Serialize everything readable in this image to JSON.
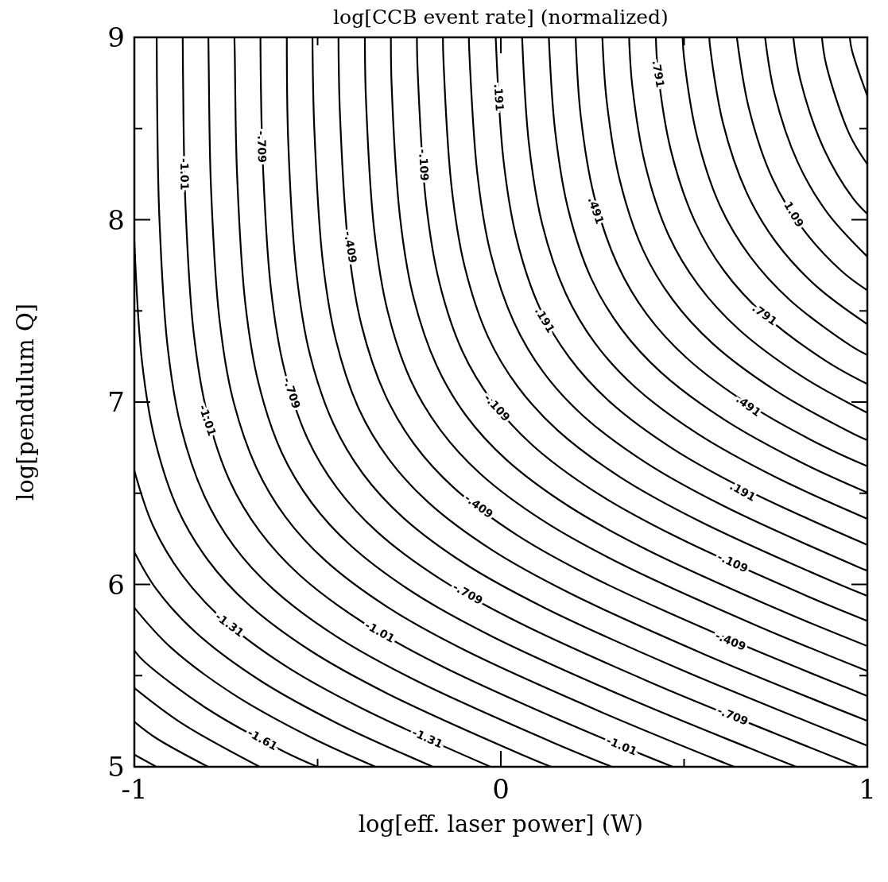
{
  "chart_data": {
    "type": "line",
    "title": "log[CCB event rate] (normalized)",
    "xlabel": "log[eff. laser power] (W)",
    "ylabel": "log[pendulum Q]",
    "xlim": [
      -1,
      1
    ],
    "ylim": [
      5,
      9
    ],
    "xticks": [
      -1,
      {
        "value": -0.5,
        "label": null
      },
      0,
      {
        "value": 0.5,
        "label": null
      },
      1
    ],
    "yticks": [
      5,
      {
        "value": 5.5,
        "label": null
      },
      6,
      {
        "value": 6.5,
        "label": null
      },
      7,
      {
        "value": 7.5,
        "label": null
      },
      8,
      {
        "value": 8.5,
        "label": null
      },
      9
    ],
    "series": [
      {
        "color": "#000000",
        "x": [
          -0.94,
          -1
        ],
        "values": [
          5,
          5.067
        ]
      },
      {
        "color": "#000000",
        "x": [
          -0.799,
          -0.942,
          -1
        ],
        "values": [
          5,
          5.159,
          5.247
        ]
      },
      {
        "color": "#000000",
        "x": [
          -0.658,
          -0.871,
          -1
        ],
        "values": [
          5,
          5.239,
          5.432
        ]
      },
      {
        "color": "#000000",
        "x": [
          -0.5,
          -0.589,
          -0.801,
          -0.972,
          -1
        ],
        "values": [
          5,
          5.081,
          5.318,
          5.575,
          5.637
        ]
      },
      {
        "color": "#000000",
        "x": [
          -0.342,
          -0.518,
          -0.73,
          -0.901,
          -1
        ],
        "values": [
          5,
          5.161,
          5.398,
          5.655,
          5.872
        ]
      },
      {
        "color": "#000000",
        "x": [
          -0.185,
          -0.448,
          -0.66,
          -0.831,
          -0.94,
          -1
        ],
        "values": [
          5,
          5.24,
          5.477,
          5.734,
          5.974,
          6.178
        ]
      },
      {
        "color": "#000000",
        "x": [
          -0.028,
          -0.378,
          -0.59,
          -0.761,
          -0.87,
          -0.95,
          -1
        ],
        "values": [
          5,
          5.319,
          5.556,
          5.813,
          6.053,
          6.326,
          6.624
        ]
      },
      {
        "color": "#000000",
        "x": [
          0.137,
          0.061,
          -0.307,
          -0.519,
          -0.69,
          -0.799,
          -0.88,
          -0.943,
          -0.979,
          -1
        ],
        "values": [
          5,
          5.063,
          5.399,
          5.636,
          5.893,
          6.133,
          6.406,
          6.785,
          7.22,
          7.879
        ]
      },
      {
        "color": "#000000",
        "x": [
          0.303,
          0.132,
          -0.237,
          -0.449,
          -0.62,
          -0.729,
          -0.809,
          -0.873,
          -0.909,
          -0.932,
          -0.938,
          -0.939
        ],
        "values": [
          5,
          5.142,
          5.478,
          5.715,
          5.972,
          6.212,
          6.485,
          6.864,
          7.299,
          8.024,
          8.674,
          9
        ]
      },
      {
        "color": "#000000",
        "x": [
          0.469,
          0.202,
          -0.166,
          -0.378,
          -0.549,
          -0.658,
          -0.739,
          -0.802,
          -0.838,
          -0.861,
          -0.867,
          -0.868
        ],
        "values": [
          5,
          5.221,
          5.557,
          5.794,
          6.051,
          6.291,
          6.564,
          6.943,
          7.378,
          8.103,
          8.753,
          9
        ]
      },
      {
        "color": "#000000",
        "x": [
          0.637,
          0.608,
          0.273,
          -0.096,
          -0.308,
          -0.479,
          -0.588,
          -0.668,
          -0.732,
          -0.768,
          -0.791,
          -0.797,
          -0.798
        ],
        "values": [
          5,
          5.023,
          5.301,
          5.637,
          5.874,
          6.131,
          6.371,
          6.644,
          7.023,
          7.458,
          8.183,
          8.833,
          9
        ]
      },
      {
        "color": "#000000",
        "x": [
          0.806,
          0.679,
          0.343,
          -0.025,
          -0.237,
          -0.408,
          -0.517,
          -0.598,
          -0.661,
          -0.697,
          -0.72,
          -0.726,
          -0.727
        ],
        "values": [
          5,
          5.102,
          5.38,
          5.716,
          5.953,
          6.21,
          6.45,
          6.723,
          7.102,
          7.537,
          8.262,
          8.912,
          9
        ]
      },
      {
        "color": "#000000",
        "x": [
          0.975,
          0.749,
          0.413,
          0.045,
          -0.167,
          -0.338,
          -0.447,
          -0.528,
          -0.591,
          -0.627,
          -0.65,
          -0.656
        ],
        "values": [
          5,
          5.182,
          5.459,
          5.795,
          6.032,
          6.289,
          6.529,
          6.802,
          7.181,
          7.616,
          8.341,
          9
        ]
      },
      {
        "color": "#000000",
        "x": [
          1,
          0.82,
          0.484,
          0.116,
          -0.097,
          -0.268,
          -0.377,
          -0.457,
          -0.521,
          -0.557,
          -0.58,
          -0.584
        ],
        "values": [
          5.116,
          5.261,
          5.539,
          5.875,
          6.112,
          6.369,
          6.609,
          6.882,
          7.261,
          7.696,
          8.421,
          9
        ]
      },
      {
        "color": "#000000",
        "x": [
          1,
          0.89,
          0.554,
          0.186,
          -0.026,
          -0.197,
          -0.306,
          -0.387,
          -0.45,
          -0.486,
          -0.509,
          -0.514
        ],
        "values": [
          5.252,
          5.34,
          5.618,
          5.954,
          6.191,
          6.448,
          6.688,
          6.961,
          7.34,
          7.775,
          8.5,
          9
        ]
      },
      {
        "color": "#000000",
        "x": [
          1,
          0.961,
          0.625,
          0.256,
          0.044,
          -0.127,
          -0.236,
          -0.316,
          -0.38,
          -0.416,
          -0.439,
          -0.443
        ],
        "values": [
          5.388,
          5.42,
          5.698,
          6.034,
          6.271,
          6.528,
          6.768,
          7.041,
          7.42,
          7.855,
          8.58,
          9
        ]
      },
      {
        "color": "#000000",
        "x": [
          1,
          0.695,
          0.327,
          0.115,
          -0.056,
          -0.165,
          -0.246,
          -0.309,
          -0.345,
          -0.368,
          -0.371
        ],
        "values": [
          5.525,
          5.777,
          6.113,
          6.35,
          6.607,
          6.847,
          7.12,
          7.499,
          7.934,
          8.659,
          9
        ]
      },
      {
        "color": "#000000",
        "x": [
          1,
          0.765,
          0.397,
          0.185,
          0.014,
          -0.095,
          -0.175,
          -0.239,
          -0.275,
          -0.298,
          -0.3
        ],
        "values": [
          5.662,
          5.856,
          6.192,
          6.429,
          6.686,
          6.926,
          7.199,
          7.578,
          8.013,
          8.738,
          9
        ]
      },
      {
        "color": "#000000",
        "x": [
          1,
          0.836,
          0.468,
          0.256,
          0.085,
          -0.024,
          -0.105,
          -0.168,
          -0.204,
          -0.227,
          -0.229
        ],
        "values": [
          5.8,
          5.936,
          6.272,
          6.509,
          6.766,
          7.006,
          7.279,
          7.658,
          8.093,
          8.818,
          9
        ]
      },
      {
        "color": "#000000",
        "x": [
          1,
          0.906,
          0.538,
          0.326,
          0.155,
          0.046,
          -0.035,
          -0.098,
          -0.134,
          -0.157,
          -0.158
        ],
        "values": [
          5.937,
          6.015,
          6.351,
          6.588,
          6.845,
          7.085,
          7.358,
          7.737,
          8.172,
          8.897,
          9
        ]
      },
      {
        "color": "#000000",
        "x": [
          1,
          0.977,
          0.608,
          0.396,
          0.225,
          0.116,
          0.036,
          -0.028,
          -0.064,
          -0.087,
          -0.087
        ],
        "values": [
          6.075,
          6.094,
          6.43,
          6.667,
          6.924,
          7.164,
          7.437,
          7.816,
          8.251,
          8.976,
          9
        ]
      },
      {
        "color": "#000000",
        "x": [
          1,
          0.679,
          0.467,
          0.296,
          0.187,
          0.106,
          0.043,
          0.007,
          -0.014
        ],
        "values": [
          6.217,
          6.51,
          6.747,
          7.004,
          7.244,
          7.517,
          7.896,
          8.331,
          9
        ]
      },
      {
        "color": "#000000",
        "x": [
          1,
          0.749,
          0.537,
          0.366,
          0.257,
          0.177,
          0.113,
          0.077,
          0.058
        ],
        "values": [
          6.36,
          6.589,
          6.826,
          7.083,
          7.323,
          7.596,
          7.975,
          8.41,
          9
        ]
      },
      {
        "color": "#000000",
        "x": [
          1,
          0.82,
          0.608,
          0.437,
          0.328,
          0.247,
          0.184,
          0.148,
          0.131
        ],
        "values": [
          6.504,
          6.669,
          6.906,
          7.163,
          7.403,
          7.676,
          8.055,
          8.49,
          9
        ]
      },
      {
        "color": "#000000",
        "x": [
          1,
          0.89,
          0.678,
          0.507,
          0.398,
          0.318,
          0.254,
          0.218,
          0.204
        ],
        "values": [
          6.648,
          6.748,
          6.985,
          7.242,
          7.482,
          7.755,
          8.134,
          8.569,
          9
        ]
      },
      {
        "color": "#000000",
        "x": [
          1,
          0.961,
          0.749,
          0.578,
          0.469,
          0.388,
          0.325,
          0.289,
          0.277
        ],
        "values": [
          6.791,
          6.827,
          7.064,
          7.321,
          7.561,
          7.834,
          8.213,
          8.648,
          9
        ]
      },
      {
        "color": "#000000",
        "x": [
          1,
          0.819,
          0.648,
          0.539,
          0.458,
          0.395,
          0.359,
          0.35
        ],
        "values": [
          6.941,
          7.144,
          7.401,
          7.641,
          7.914,
          8.293,
          8.728,
          9
        ]
      },
      {
        "color": "#000000",
        "x": [
          1,
          0.889,
          0.718,
          0.609,
          0.529,
          0.465,
          0.429,
          0.423
        ],
        "values": [
          7.099,
          7.223,
          7.48,
          7.72,
          7.993,
          8.372,
          8.807,
          9
        ]
      },
      {
        "color": "#000000",
        "x": [
          1,
          0.96,
          0.789,
          0.68,
          0.599,
          0.536,
          0.5,
          0.496
        ],
        "values": [
          7.258,
          7.302,
          7.559,
          7.799,
          8.072,
          8.451,
          8.886,
          9
        ]
      },
      {
        "color": "#000000",
        "x": [
          1,
          0.859,
          0.75,
          0.67,
          0.606,
          0.57,
          0.569
        ],
        "values": [
          7.427,
          7.639,
          7.879,
          8.152,
          8.531,
          8.966,
          9
        ]
      },
      {
        "color": "#000000",
        "x": [
          1,
          0.93,
          0.821,
          0.74,
          0.677,
          0.644
        ],
        "values": [
          7.613,
          7.718,
          7.958,
          8.231,
          8.61,
          9
        ]
      },
      {
        "color": "#000000",
        "x": [
          1,
          0.891,
          0.811,
          0.747,
          0.721
        ],
        "values": [
          7.798,
          8.038,
          8.311,
          8.69,
          9
        ]
      },
      {
        "color": "#000000",
        "x": [
          1,
          0.961,
          0.881,
          0.817,
          0.798
        ],
        "values": [
          8.032,
          8.117,
          8.39,
          8.769,
          9
        ]
      },
      {
        "color": "#000000",
        "x": [
          1,
          0.951,
          0.888,
          0.876
        ],
        "values": [
          8.304,
          8.469,
          8.848,
          9
        ]
      },
      {
        "color": "#000000",
        "x": [
          1,
          0.958,
          0.952
        ],
        "values": [
          8.679,
          8.928,
          9
        ]
      }
    ],
    "annotations": [
      {
        "text": "-1.01",
        "x": -0.863,
        "y": 8.25
      },
      {
        "text": "-1.01",
        "x": -0.8,
        "y": 6.9
      },
      {
        "text": "-1.01",
        "x": -0.33,
        "y": 5.74
      },
      {
        "text": "-1.01",
        "x": 0.33,
        "y": 5.115
      },
      {
        "text": "-.709",
        "x": -0.652,
        "y": 8.4
      },
      {
        "text": "-.709",
        "x": -0.57,
        "y": 7.05
      },
      {
        "text": "-.709",
        "x": -0.09,
        "y": 5.95
      },
      {
        "text": "-.709",
        "x": 0.633,
        "y": 5.28
      },
      {
        "text": "-.409",
        "x": -0.41,
        "y": 7.85
      },
      {
        "text": "-.409",
        "x": -0.06,
        "y": 6.43
      },
      {
        "text": "-.409",
        "x": 0.627,
        "y": 5.69
      },
      {
        "text": "-.109",
        "x": -0.21,
        "y": 8.3
      },
      {
        "text": "-.109",
        "x": -0.01,
        "y": 6.97
      },
      {
        "text": "-.109",
        "x": 0.633,
        "y": 6.12
      },
      {
        "text": ".191",
        "x": -0.005,
        "y": 8.67
      },
      {
        "text": ".191",
        "x": 0.12,
        "y": 7.45
      },
      {
        "text": ".191",
        "x": 0.66,
        "y": 6.51
      },
      {
        "text": ".491",
        "x": 0.26,
        "y": 8.05
      },
      {
        "text": ".491",
        "x": 0.676,
        "y": 6.98
      },
      {
        "text": ".791",
        "x": 0.43,
        "y": 8.8
      },
      {
        "text": ".791",
        "x": 0.72,
        "y": 7.48
      },
      {
        "text": "1.09",
        "x": 0.8,
        "y": 8.03
      },
      {
        "text": "-1.31",
        "x": -0.74,
        "y": 5.78
      },
      {
        "text": "-1.31",
        "x": -0.2,
        "y": 5.157
      },
      {
        "text": "-1.61",
        "x": -0.65,
        "y": 5.15
      }
    ]
  }
}
